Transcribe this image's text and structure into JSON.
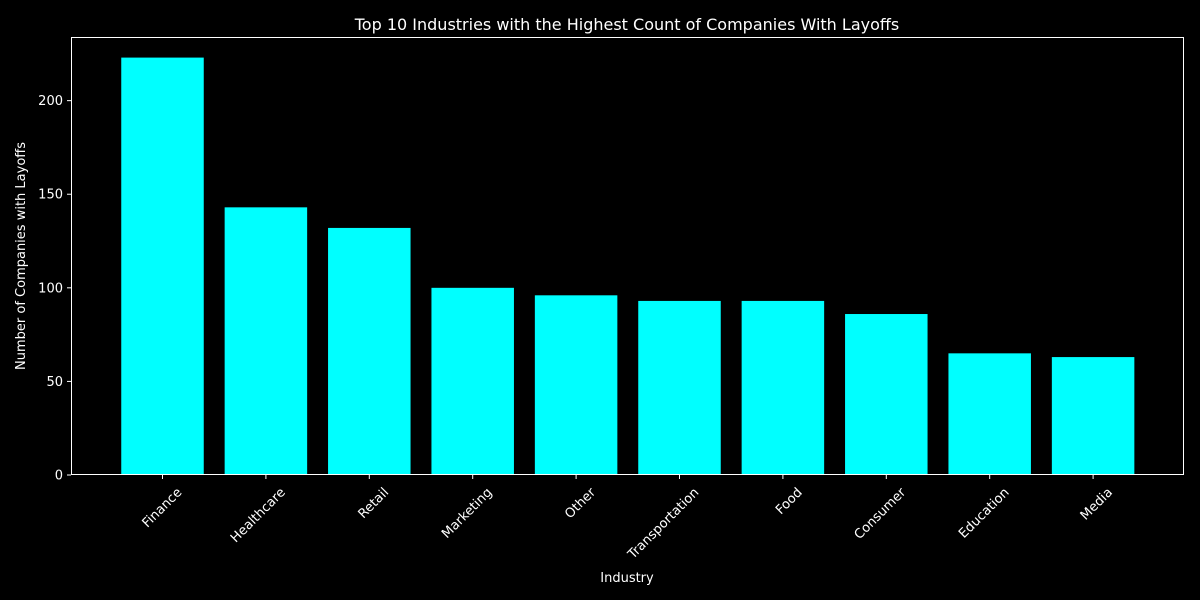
{
  "chart_data": {
    "type": "bar",
    "title": "Top 10 Industries with the Highest Count of Companies With Layoffs",
    "xlabel": "Industry",
    "ylabel": "Number of Companies with Layoffs",
    "categories": [
      "Finance",
      "Healthcare",
      "Retail",
      "Marketing",
      "Other",
      "Transportation",
      "Food",
      "Consumer",
      "Education",
      "Media"
    ],
    "values": [
      223,
      143,
      132,
      100,
      96,
      93,
      93,
      86,
      65,
      63
    ],
    "yticks": [
      0,
      50,
      100,
      150,
      200
    ],
    "ylim": [
      0,
      234
    ],
    "grid": false,
    "legend": "none",
    "bar_color": "#00ffff",
    "axis_color": "#ffffff",
    "background": "#000000"
  }
}
